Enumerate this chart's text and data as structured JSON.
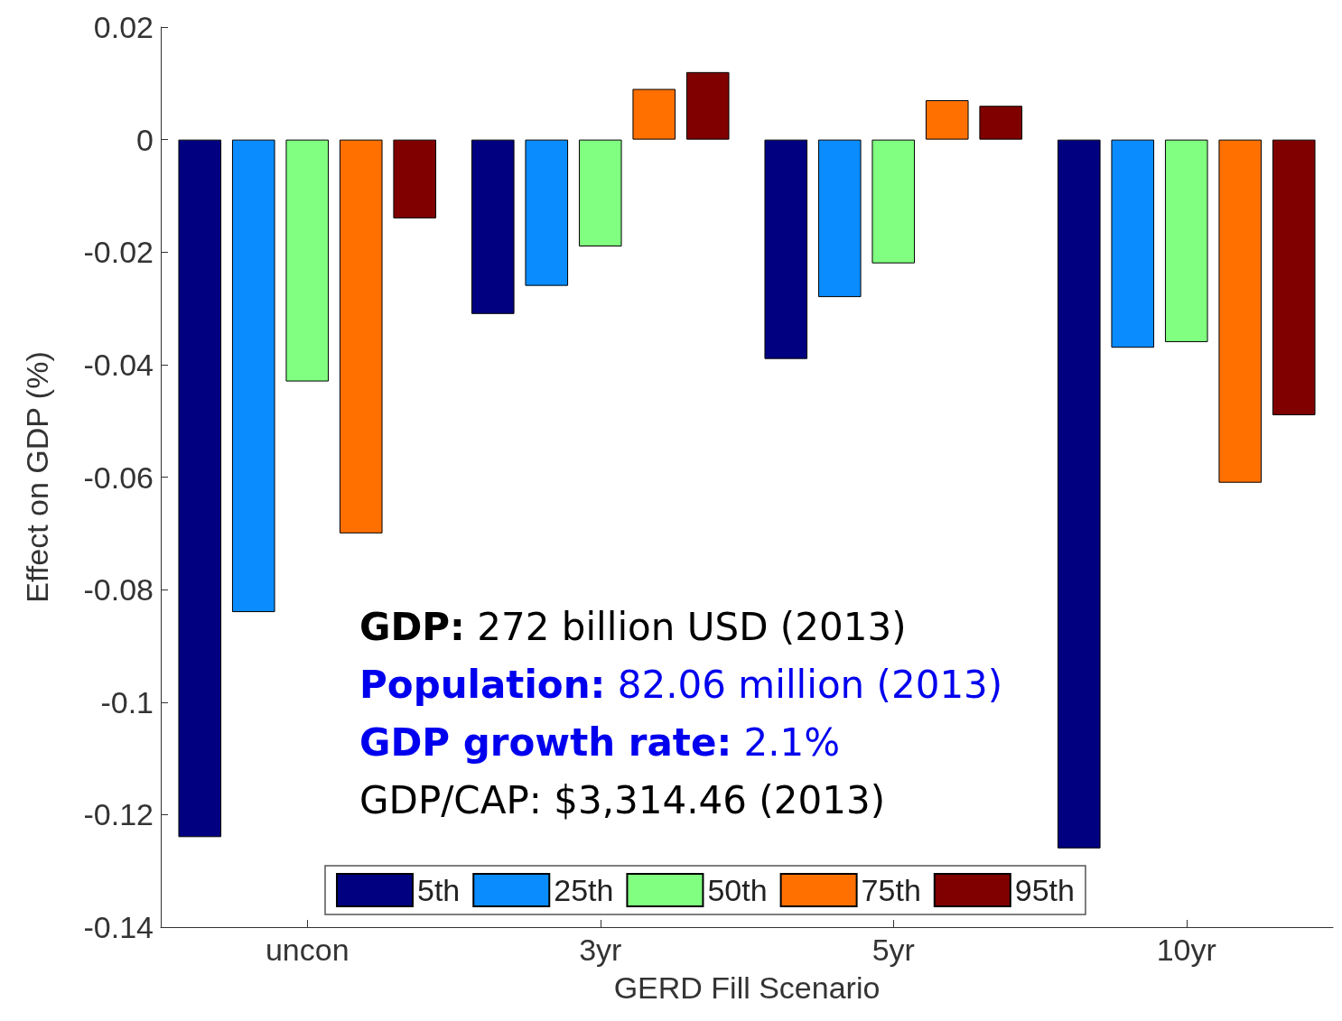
{
  "chart_data": {
    "type": "bar",
    "xlabel": "GERD Fill Scenario",
    "ylabel": "Effect on GDP (%)",
    "categories": [
      "uncon",
      "3yr",
      "5yr",
      "10yr"
    ],
    "series": [
      {
        "name": "5th",
        "color": "#000080",
        "values": [
          -0.124,
          -0.031,
          -0.039,
          -0.126
        ]
      },
      {
        "name": "25th",
        "color": "#0a8cff",
        "values": [
          -0.084,
          -0.026,
          -0.028,
          -0.037
        ]
      },
      {
        "name": "50th",
        "color": "#80ff80",
        "values": [
          -0.043,
          -0.019,
          -0.022,
          -0.036
        ]
      },
      {
        "name": "75th",
        "color": "#ff7000",
        "values": [
          -0.07,
          0.009,
          0.007,
          -0.061
        ]
      },
      {
        "name": "95th",
        "color": "#800000",
        "values": [
          -0.014,
          0.012,
          0.006,
          -0.049
        ]
      }
    ],
    "ylim": [
      -0.14,
      0.02
    ],
    "yticks": [
      -0.14,
      -0.12,
      -0.1,
      -0.08,
      -0.06,
      -0.04,
      -0.02,
      0,
      0.02
    ],
    "grid": false,
    "legend": "bottom",
    "annotations": [
      "GDP: 272 billion USD (2013)",
      "Population: 82.06 million (2013)",
      "GDP growth rate: 2.1%",
      "GDP/CAP: $3,314.46 (2013)"
    ]
  }
}
